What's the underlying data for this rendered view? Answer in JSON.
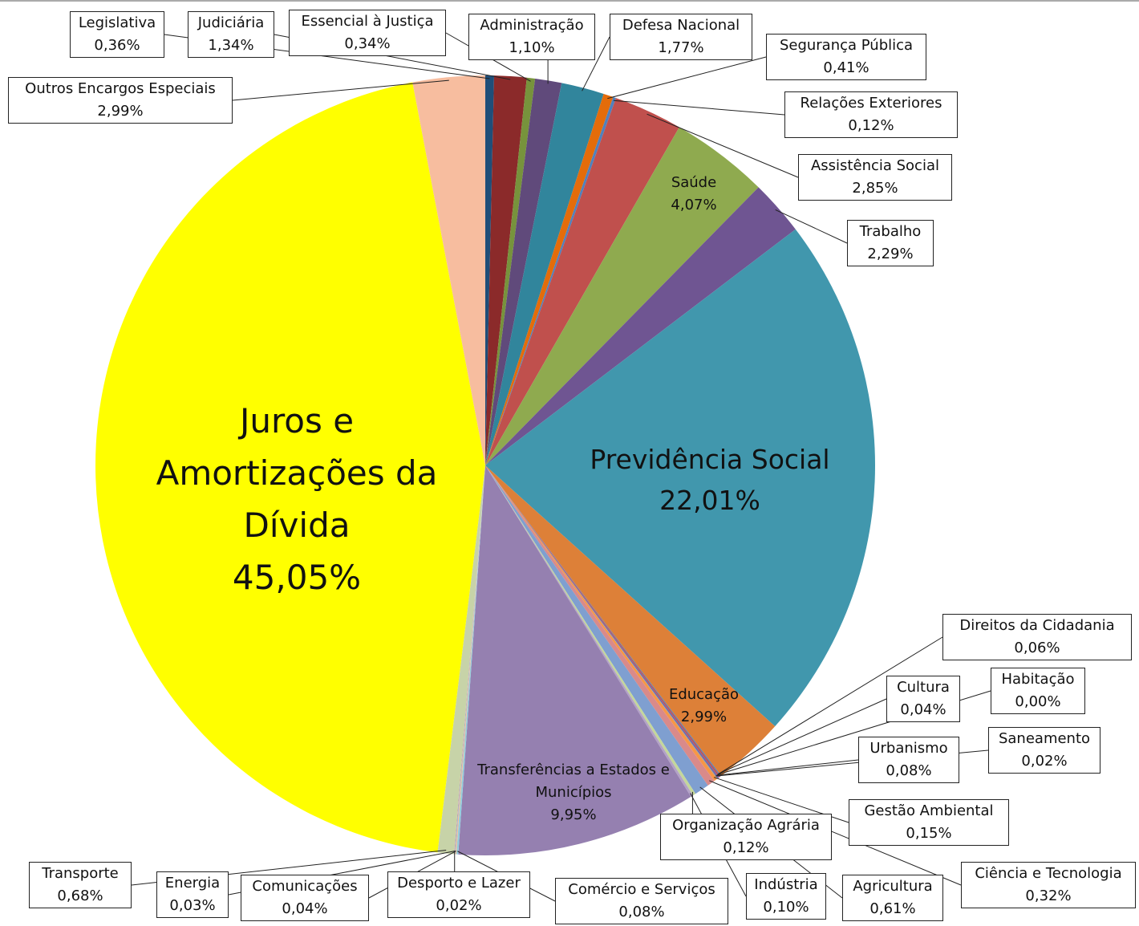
{
  "chart_data": {
    "type": "pie",
    "categories": [
      "Legislativa",
      "Judiciária",
      "Essencial à Justiça",
      "Administração",
      "Defesa Nacional",
      "Segurança Pública",
      "Relações Exteriores",
      "Assistência Social",
      "Saúde",
      "Trabalho",
      "Previdência Social",
      "Educação",
      "Cultura",
      "Direitos da Cidadania",
      "Habitação",
      "Urbanismo",
      "Saneamento",
      "Gestão Ambiental",
      "Ciência e Tecnologia",
      "Agricultura",
      "Organização Agrária",
      "Indústria",
      "Transferências a Estados e Municípios",
      "Comércio e Serviços",
      "Comunicações",
      "Energia",
      "Desporto e Lazer",
      "Transporte",
      "Juros e Amortizações da Dívida",
      "Outros Encargos Especiais"
    ],
    "values": [
      0.36,
      1.34,
      0.34,
      1.1,
      1.77,
      0.41,
      0.12,
      2.85,
      4.07,
      2.29,
      22.01,
      2.99,
      0.04,
      0.06,
      0.0,
      0.08,
      0.02,
      0.15,
      0.32,
      0.61,
      0.12,
      0.1,
      9.95,
      0.08,
      0.04,
      0.03,
      0.02,
      0.68,
      45.05,
      2.99
    ],
    "value_labels": [
      "0,36%",
      "1,34%",
      "0,34%",
      "1,10%",
      "1,77%",
      "0,41%",
      "0,12%",
      "2,85%",
      "4,07%",
      "2,29%",
      "22,01%",
      "2,99%",
      "0,04%",
      "0,06%",
      "0,00%",
      "0,08%",
      "0,02%",
      "0,15%",
      "0,32%",
      "0,61%",
      "0,12%",
      "0,10%",
      "9,95%",
      "0,08%",
      "0,04%",
      "0,03%",
      "0,02%",
      "0,68%",
      "45,05%",
      "2,99%"
    ],
    "colors": [
      "#1f4e79",
      "#8b2a2a",
      "#77933c",
      "#604a7b",
      "#31859c",
      "#e46c0a",
      "#4f81bd",
      "#c0504d",
      "#8faa4f",
      "#6f5592",
      "#4197ad",
      "#dd8038",
      "#4f81bd",
      "#c0504d",
      "#9bbb59",
      "#8064a2",
      "#4bacc6",
      "#f79646",
      "#d98a8a",
      "#7f9fd0",
      "#c4d79b",
      "#b3a2c7",
      "#9580b0",
      "#93cddd",
      "#fac090",
      "#95b3d7",
      "#d99694",
      "#c7d3a8",
      "#ffff00",
      "#f7bd9f"
    ]
  }
}
